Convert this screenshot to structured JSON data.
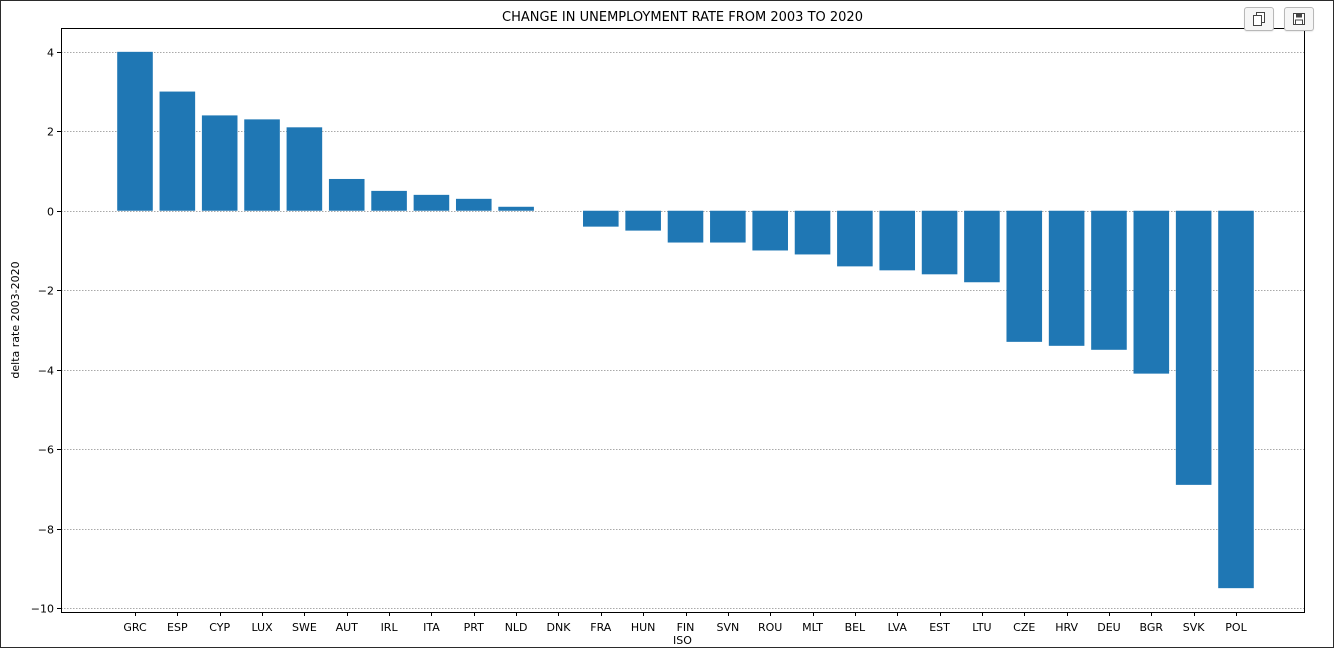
{
  "toolbar": {
    "copy_icon": "copy-icon",
    "save_icon": "floppy-disk-icon"
  },
  "chart_data": {
    "type": "bar",
    "title": "CHANGE IN UNEMPLOYMENT RATE FROM 2003 TO 2020",
    "xlabel": "ISO",
    "ylabel": "delta rate 2003-2020",
    "categories": [
      "GRC",
      "ESP",
      "CYP",
      "LUX",
      "SWE",
      "AUT",
      "IRL",
      "ITA",
      "PRT",
      "NLD",
      "DNK",
      "FRA",
      "HUN",
      "FIN",
      "SVN",
      "ROU",
      "MLT",
      "BEL",
      "LVA",
      "EST",
      "LTU",
      "CZE",
      "HRV",
      "DEU",
      "BGR",
      "SVK",
      "POL"
    ],
    "values": [
      4.0,
      3.0,
      2.4,
      2.3,
      2.1,
      0.8,
      0.5,
      0.4,
      0.3,
      0.1,
      0.0,
      -0.4,
      -0.5,
      -0.8,
      -0.8,
      -1.0,
      -1.1,
      -1.4,
      -1.5,
      -1.6,
      -1.8,
      -3.3,
      -3.4,
      -3.5,
      -4.1,
      -6.9,
      -9.5
    ],
    "ylim": [
      -10.1,
      4.6
    ],
    "yticks": [
      4,
      2,
      0,
      -2,
      -4,
      -6,
      -8,
      -10
    ],
    "ytick_labels": [
      "4",
      "2",
      "0",
      "−2",
      "−4",
      "−6",
      "−8",
      "−10"
    ],
    "grid": true,
    "bar_color": "#1f77b4"
  }
}
